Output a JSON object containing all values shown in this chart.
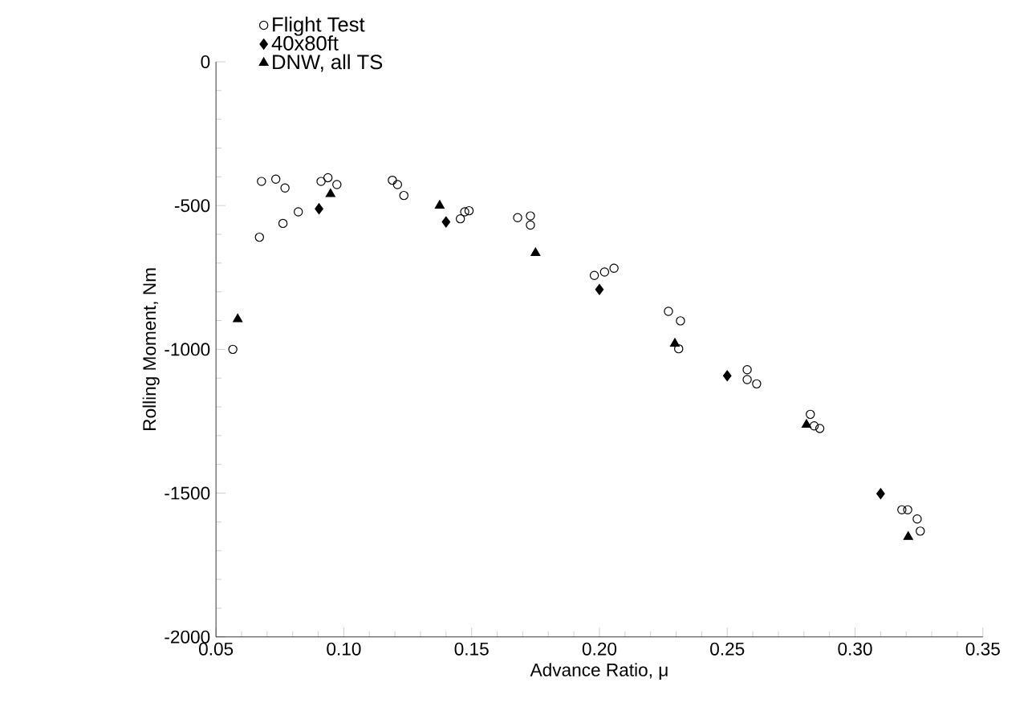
{
  "chart_data": {
    "type": "scatter",
    "xlabel": "Advance Ratio, μ",
    "ylabel": "Rolling Moment, Nm",
    "xlim": [
      0.05,
      0.35
    ],
    "ylim": [
      -2000,
      0
    ],
    "xticks": [
      {
        "value": 0.05,
        "label": "0.05"
      },
      {
        "value": 0.1,
        "label": "0.10"
      },
      {
        "value": 0.15,
        "label": "0.15"
      },
      {
        "value": 0.2,
        "label": "0.20"
      },
      {
        "value": 0.25,
        "label": "0.25"
      },
      {
        "value": 0.3,
        "label": "0.30"
      },
      {
        "value": 0.35,
        "label": "0.35"
      }
    ],
    "yticks": [
      -2000,
      -1500,
      -1000,
      -500,
      0
    ],
    "grid": false,
    "legend": "top left",
    "series": [
      {
        "name": "Flight Test",
        "color": "#000000",
        "marker": "circle",
        "x": [
          0.0566,
          0.067,
          0.0678,
          0.0734,
          0.077,
          0.0762,
          0.0822,
          0.0911,
          0.0938,
          0.0973,
          0.119,
          0.121,
          0.1235,
          0.1456,
          0.1473,
          0.149,
          0.168,
          0.173,
          0.173,
          0.198,
          0.202,
          0.2057,
          0.227,
          0.2317,
          0.231,
          0.2578,
          0.2578,
          0.2615,
          0.2825,
          0.284,
          0.2862,
          0.3183,
          0.3206,
          0.3243,
          0.3255
        ],
        "values": [
          -1000,
          -610,
          -416,
          -408,
          -439,
          -562,
          -522,
          -416,
          -403,
          -427,
          -412,
          -427,
          -465,
          -546,
          -522,
          -518,
          -542,
          -536,
          -568,
          -743,
          -731,
          -718,
          -868,
          -901,
          -998,
          -1071,
          -1105,
          -1120,
          -1226,
          -1266,
          -1275,
          -1558,
          -1558,
          -1590,
          -1632
        ]
      },
      {
        "name": "40x80ft",
        "color": "#000000",
        "marker": "diamond",
        "x": [
          0.0903,
          0.14,
          0.2,
          0.25,
          0.31
        ],
        "values": [
          -511,
          -557,
          -792,
          -1092,
          -1502
        ]
      },
      {
        "name": "DNW, all TS",
        "color": "#000000",
        "marker": "triangle",
        "x": [
          0.0585,
          0.0948,
          0.1375,
          0.175,
          0.2295,
          0.281,
          0.3208
        ],
        "values": [
          -895,
          -460,
          -500,
          -665,
          -980,
          -1262,
          -1652
        ]
      }
    ]
  }
}
